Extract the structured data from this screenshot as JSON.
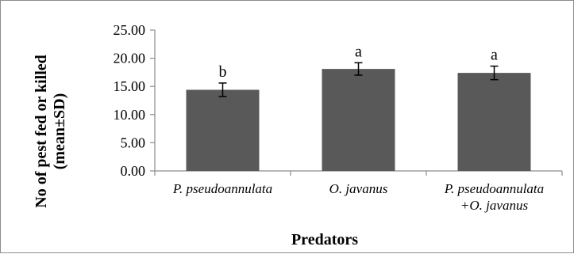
{
  "chart_data": {
    "type": "bar",
    "categories": [
      [
        "P. pseudoannulata"
      ],
      [
        "O. javanus"
      ],
      [
        "P. pseudoannulata",
        "+O. javanus"
      ]
    ],
    "values": [
      14.4,
      18.1,
      17.4
    ],
    "errors": [
      1.2,
      1.1,
      1.2
    ],
    "labels": [
      "b",
      "a",
      "a"
    ],
    "xlabel": "Predators",
    "ylabel": [
      "No of pest fed or killed",
      "(mean±SD)"
    ],
    "ylim": [
      0,
      25
    ],
    "yticks": [
      "0.00",
      "5.00",
      "10.00",
      "15.00",
      "20.00",
      "25.00"
    ],
    "ytick_values": [
      0,
      5,
      10,
      15,
      20,
      25
    ],
    "grid": false,
    "legend": "none",
    "colors": {
      "bar": "#595959",
      "axis": "#8c8c8c",
      "error": "#000000"
    }
  }
}
